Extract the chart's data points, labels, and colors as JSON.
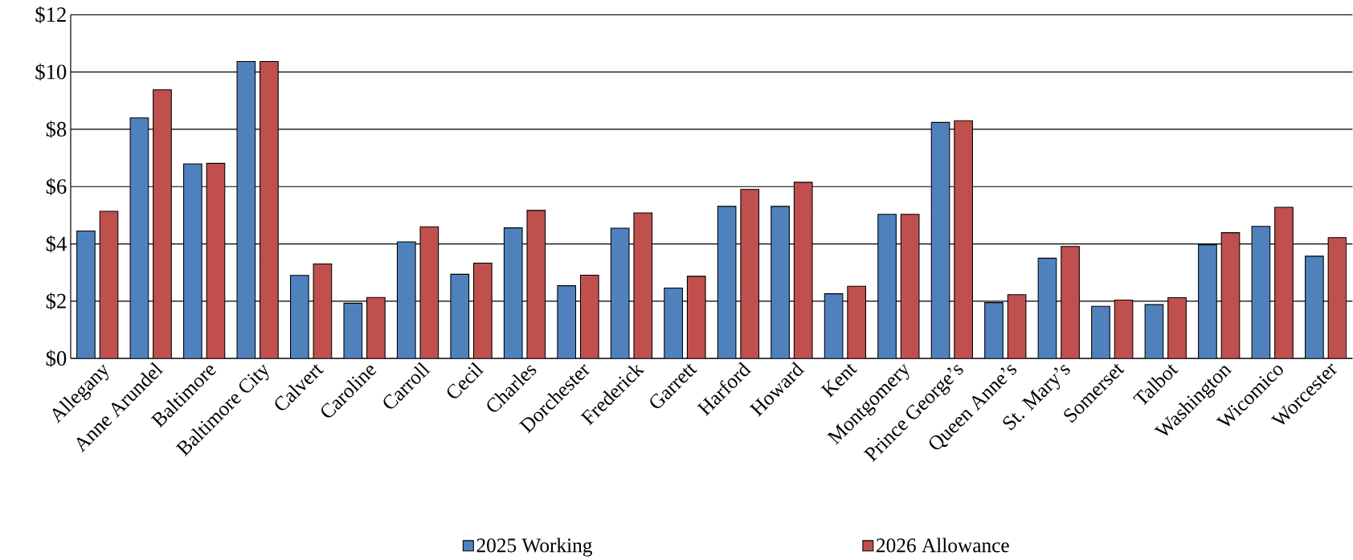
{
  "chart_data": {
    "type": "bar",
    "categories": [
      "Allegany",
      "Anne Arundel",
      "Baltimore",
      "Baltimore City",
      "Calvert",
      "Caroline",
      "Carroll",
      "Cecil",
      "Charles",
      "Dorchester",
      "Frederick",
      "Garrett",
      "Harford",
      "Howard",
      "Kent",
      "Montgomery",
      "Prince George’s",
      "Queen Anne’s",
      "St. Mary’s",
      "Somerset",
      "Talbot",
      "Washington",
      "Wicomico",
      "Worcester"
    ],
    "series": [
      {
        "name": "2025 Working",
        "color": "#4f81bd",
        "values": [
          4.45,
          8.4,
          6.79,
          10.37,
          2.9,
          1.93,
          4.07,
          2.94,
          4.56,
          2.54,
          4.55,
          2.46,
          5.31,
          5.31,
          2.26,
          5.03,
          8.24,
          1.95,
          3.5,
          1.82,
          1.88,
          3.97,
          4.61,
          3.57
        ]
      },
      {
        "name": "2026 Allowance",
        "color": "#c0504d",
        "values": [
          5.14,
          9.38,
          6.81,
          10.37,
          3.3,
          2.13,
          4.6,
          3.33,
          5.17,
          2.91,
          5.08,
          2.87,
          5.9,
          6.15,
          2.52,
          5.03,
          8.3,
          2.23,
          3.91,
          2.04,
          2.12,
          4.39,
          5.28,
          4.22
        ]
      }
    ],
    "ylim": [
      0,
      12
    ],
    "yticks": [
      {
        "value": 0,
        "label": "$0"
      },
      {
        "value": 2,
        "label": "$2"
      },
      {
        "value": 4,
        "label": "$4"
      },
      {
        "value": 6,
        "label": "$6"
      },
      {
        "value": 8,
        "label": "$8"
      },
      {
        "value": 10,
        "label": "$10"
      },
      {
        "value": 12,
        "label": "$12"
      }
    ],
    "grid": "y",
    "legend": "bottom"
  }
}
